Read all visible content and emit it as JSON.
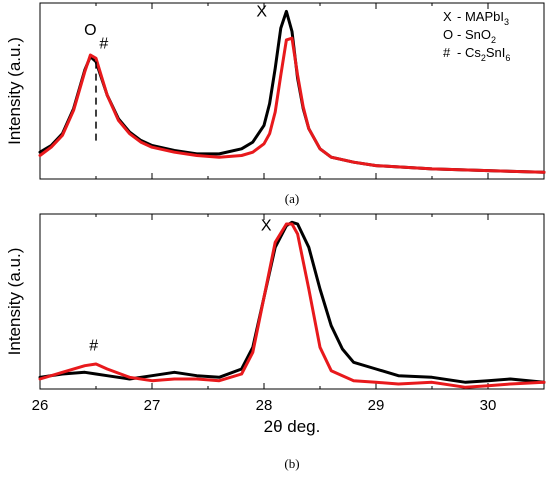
{
  "figure": {
    "panels": [
      {
        "caption": "(a)",
        "ylabel": "Intensity (a.u.)",
        "xlabel": "",
        "xlim": [
          26,
          30.5
        ],
        "ylim": [
          0,
          1.05
        ],
        "show_x_tick_labels": false,
        "legend": {
          "placement": "top-right",
          "entries": [
            {
              "marker": "X",
              "dash": "-",
              "text": "MAPbI",
              "sub": "3",
              "rest": ""
            },
            {
              "marker": "O",
              "dash": "-",
              "text": "SnO",
              "sub": "2",
              "rest": ""
            },
            {
              "marker": "#",
              "dash": "-",
              "text": "Cs",
              "sub": "2",
              "rest": "SnI",
              "sub2": "6"
            }
          ]
        },
        "annotations": [
          {
            "text": "O",
            "x": 26.45,
            "y": 0.86
          },
          {
            "text": "#",
            "x": 26.57,
            "y": 0.78
          },
          {
            "text": "X",
            "x": 27.98,
            "y": 0.97
          }
        ],
        "dashed_line": {
          "x": 26.5,
          "y0": 0.2,
          "y1": 0.7
        },
        "series": [
          {
            "name": "black",
            "color": "#000000",
            "x": [
              26.0,
              26.1,
              26.2,
              26.3,
              26.4,
              26.45,
              26.5,
              26.55,
              26.6,
              26.7,
              26.8,
              26.9,
              27.0,
              27.2,
              27.4,
              27.6,
              27.8,
              27.9,
              28.0,
              28.05,
              28.1,
              28.15,
              28.2,
              28.25,
              28.3,
              28.35,
              28.4,
              28.5,
              28.6,
              28.8,
              29.0,
              29.5,
              30.0,
              30.5
            ],
            "y": [
              0.16,
              0.2,
              0.27,
              0.42,
              0.65,
              0.73,
              0.7,
              0.6,
              0.5,
              0.36,
              0.28,
              0.23,
              0.2,
              0.17,
              0.15,
              0.15,
              0.18,
              0.22,
              0.32,
              0.45,
              0.66,
              0.9,
              1.0,
              0.88,
              0.6,
              0.42,
              0.3,
              0.18,
              0.13,
              0.1,
              0.08,
              0.06,
              0.05,
              0.04
            ]
          },
          {
            "name": "red",
            "color": "#e8191c",
            "x": [
              26.0,
              26.1,
              26.2,
              26.3,
              26.4,
              26.45,
              26.5,
              26.55,
              26.6,
              26.7,
              26.8,
              26.9,
              27.0,
              27.2,
              27.4,
              27.6,
              27.8,
              27.9,
              28.0,
              28.05,
              28.1,
              28.15,
              28.2,
              28.25,
              28.3,
              28.35,
              28.4,
              28.5,
              28.6,
              28.8,
              29.0,
              29.5,
              30.0,
              30.5
            ],
            "y": [
              0.14,
              0.19,
              0.26,
              0.41,
              0.64,
              0.74,
              0.72,
              0.61,
              0.5,
              0.35,
              0.27,
              0.22,
              0.19,
              0.16,
              0.14,
              0.13,
              0.14,
              0.16,
              0.21,
              0.27,
              0.4,
              0.62,
              0.83,
              0.84,
              0.62,
              0.43,
              0.3,
              0.18,
              0.13,
              0.1,
              0.08,
              0.06,
              0.05,
              0.04
            ]
          }
        ]
      },
      {
        "caption": "(b)",
        "ylabel": "Intensity (a.u.)",
        "xlabel": "2θ deg.",
        "xlim": [
          26,
          30.5
        ],
        "ylim": [
          0,
          1.05
        ],
        "show_x_tick_labels": true,
        "xticks": [
          "26",
          "27",
          "28",
          "29",
          "30"
        ],
        "annotations": [
          {
            "text": "#",
            "x": 26.48,
            "y": 0.23
          },
          {
            "text": "X",
            "x": 28.02,
            "y": 0.95
          }
        ],
        "series": [
          {
            "name": "black",
            "color": "#000000",
            "x": [
              26.0,
              26.2,
              26.4,
              26.5,
              26.6,
              26.8,
              27.0,
              27.2,
              27.4,
              27.6,
              27.8,
              27.9,
              28.0,
              28.1,
              28.2,
              28.25,
              28.3,
              28.4,
              28.5,
              28.6,
              28.7,
              28.8,
              29.0,
              29.2,
              29.5,
              29.8,
              30.0,
              30.2,
              30.5
            ],
            "y": [
              0.07,
              0.09,
              0.1,
              0.09,
              0.08,
              0.06,
              0.08,
              0.1,
              0.08,
              0.07,
              0.12,
              0.25,
              0.55,
              0.85,
              0.98,
              1.0,
              0.99,
              0.85,
              0.6,
              0.38,
              0.24,
              0.16,
              0.12,
              0.08,
              0.07,
              0.04,
              0.05,
              0.06,
              0.04
            ]
          },
          {
            "name": "red",
            "color": "#e8191c",
            "x": [
              26.0,
              26.2,
              26.4,
              26.5,
              26.6,
              26.8,
              27.0,
              27.2,
              27.4,
              27.6,
              27.8,
              27.9,
              28.0,
              28.1,
              28.2,
              28.25,
              28.3,
              28.4,
              28.5,
              28.6,
              28.7,
              28.8,
              29.0,
              29.2,
              29.5,
              29.8,
              30.0,
              30.2,
              30.5
            ],
            "y": [
              0.06,
              0.1,
              0.14,
              0.15,
              0.12,
              0.07,
              0.05,
              0.06,
              0.06,
              0.05,
              0.09,
              0.22,
              0.55,
              0.88,
              0.99,
              0.99,
              0.93,
              0.6,
              0.25,
              0.11,
              0.08,
              0.05,
              0.04,
              0.03,
              0.04,
              0.01,
              0.02,
              0.03,
              0.04
            ]
          }
        ]
      }
    ]
  },
  "chart_data": [
    {
      "type": "line",
      "title": "",
      "caption": "(a)",
      "xlabel": "",
      "ylabel": "Intensity (a.u.)",
      "xlim": [
        26,
        30.5
      ],
      "series": [
        {
          "color": "#000000",
          "x": [
            26.0,
            26.5,
            27.0,
            28.2,
            29.0,
            30.5
          ],
          "y": [
            0.16,
            0.7,
            0.2,
            1.0,
            0.08,
            0.04
          ]
        },
        {
          "color": "#e8191c",
          "x": [
            26.0,
            26.45,
            27.0,
            28.25,
            29.0,
            30.5
          ],
          "y": [
            0.14,
            0.74,
            0.19,
            0.84,
            0.08,
            0.04
          ]
        }
      ],
      "legend": [
        "X - MAPbI3",
        "O - SnO2",
        "# - Cs2SnI6"
      ],
      "grid": false
    },
    {
      "type": "line",
      "title": "",
      "caption": "(b)",
      "xlabel": "2θ deg.",
      "ylabel": "Intensity (a.u.)",
      "xlim": [
        26,
        30.5
      ],
      "xticks": [
        "26",
        "27",
        "28",
        "29",
        "30"
      ],
      "series": [
        {
          "color": "#000000",
          "x": [
            26.0,
            26.4,
            27.2,
            28.25,
            29.0,
            30.5
          ],
          "y": [
            0.07,
            0.1,
            0.1,
            1.0,
            0.12,
            0.04
          ]
        },
        {
          "color": "#e8191c",
          "x": [
            26.0,
            26.5,
            27.2,
            28.2,
            29.0,
            30.5
          ],
          "y": [
            0.06,
            0.15,
            0.06,
            0.99,
            0.04,
            0.04
          ]
        }
      ],
      "grid": false
    }
  ]
}
